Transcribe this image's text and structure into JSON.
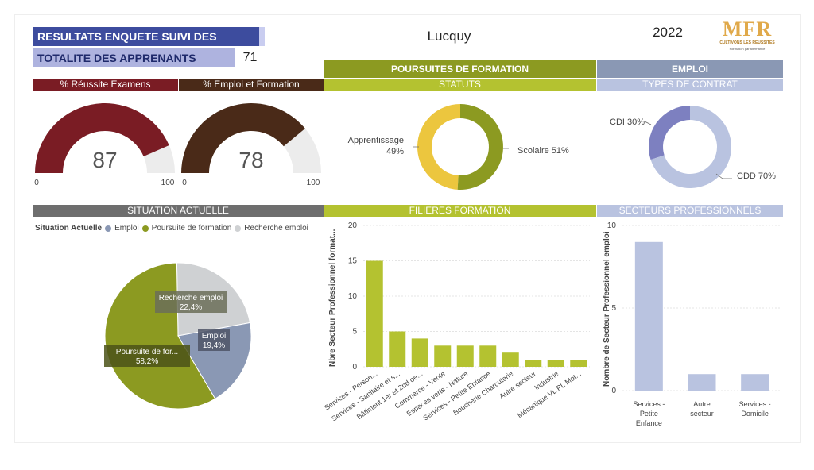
{
  "header": {
    "title": "RESULTATS ENQUETE SUIVI DES ANCIENS",
    "count_label": "TOTALITE DES APPRENANTS",
    "count_value": "71",
    "site_name": "Lucquy",
    "year": "2022"
  },
  "logo": {
    "text": "MFR",
    "tagline": "CULTIVONS LES RÉUSSITES",
    "subtag": "Formation par alternance"
  },
  "bands": {
    "reussite": "% Réussite Examens",
    "emploi_formation": "% Emploi et Formation",
    "poursuites": "POURSUITES DE FORMATION",
    "emploi": "EMPLOI",
    "statuts": "STATUTS",
    "types_contrat": "TYPES DE CONTRAT",
    "situation": "SITUATION ACTUELLE",
    "filieres": "FILIERES FORMATION",
    "secteurs": "SECTEURS PROFESSIONNELS"
  },
  "colors": {
    "maroon": "#7a1c24",
    "brown": "#4a2a18",
    "olive": "#8c9a21",
    "lime": "#b4c230",
    "slate": "#8a98b4",
    "lavender": "#b9c3e0",
    "yellow": "#ecc63e",
    "gray": "#cfd1d3",
    "purple": "#7d80c0"
  },
  "chart_data": [
    {
      "type": "gauge",
      "title": "% Réussite Examens",
      "value": 87,
      "min": 0,
      "max": 100,
      "value_label": "87",
      "min_label": "0",
      "max_label": "100"
    },
    {
      "type": "gauge",
      "title": "% Emploi et Formation",
      "value": 78,
      "min": 0,
      "max": 100,
      "value_label": "78",
      "min_label": "0",
      "max_label": "100"
    },
    {
      "type": "pie",
      "title": "STATUTS",
      "donut": true,
      "slices": [
        {
          "label": "Scolaire",
          "value": 51,
          "text": "Scolaire 51%"
        },
        {
          "label": "Apprentissage",
          "value": 49,
          "text1": "Apprentissage",
          "text2": "49%"
        }
      ]
    },
    {
      "type": "pie",
      "title": "TYPES DE CONTRAT",
      "donut": true,
      "slices": [
        {
          "label": "CDD",
          "value": 70,
          "text": "CDD 70%"
        },
        {
          "label": "CDI",
          "value": 30,
          "text": "CDI 30%"
        }
      ]
    },
    {
      "type": "pie",
      "title": "SITUATION ACTUELLE",
      "legend_title": "Situation Actuelle",
      "legend": [
        "Emploi",
        "Poursuite de formation",
        "Recherche emploi"
      ],
      "slices": [
        {
          "label": "Emploi",
          "value": 19.4,
          "tag1": "Emploi",
          "tag2": "19,4%"
        },
        {
          "label": "Poursuite de formation",
          "value": 58.2,
          "tag1": "Poursuite de for...",
          "tag2": "58,2%"
        },
        {
          "label": "Recherche emploi",
          "value": 22.4,
          "tag1": "Recherche emploi",
          "tag2": "22,4%"
        }
      ]
    },
    {
      "type": "bar",
      "title": "FILIERES FORMATION",
      "ylabel": "Nbre Secteur Professionnel format...",
      "ylim": [
        0,
        20
      ],
      "yticks": [
        "0",
        "5",
        "10",
        "15",
        "20"
      ],
      "categories": [
        "Services - Person...",
        "Services - Sanitaire et s...",
        "Bâtiment 1er et 2nd oe...",
        "Commerce - Vente",
        "Espaces verts - Nature",
        "Services - Petite Enfance",
        "Boucherie Charcuterie",
        "Autre secteur",
        "Industrie",
        "Mécanique VL PL Mot..."
      ],
      "values": [
        15,
        5,
        4,
        3,
        3,
        3,
        2,
        1,
        1,
        1
      ]
    },
    {
      "type": "bar",
      "title": "SECTEURS PROFESSIONNELS",
      "ylabel": "Nombre de Secteur Professionnel emploi",
      "ylim": [
        0,
        10
      ],
      "yticks": [
        "0",
        "5",
        "10"
      ],
      "categories": [
        [
          "Services -",
          "Petite",
          "Enfance"
        ],
        [
          "Autre",
          "secteur"
        ],
        [
          "Services -",
          "Domicile"
        ]
      ],
      "values": [
        9,
        1,
        1
      ]
    }
  ]
}
